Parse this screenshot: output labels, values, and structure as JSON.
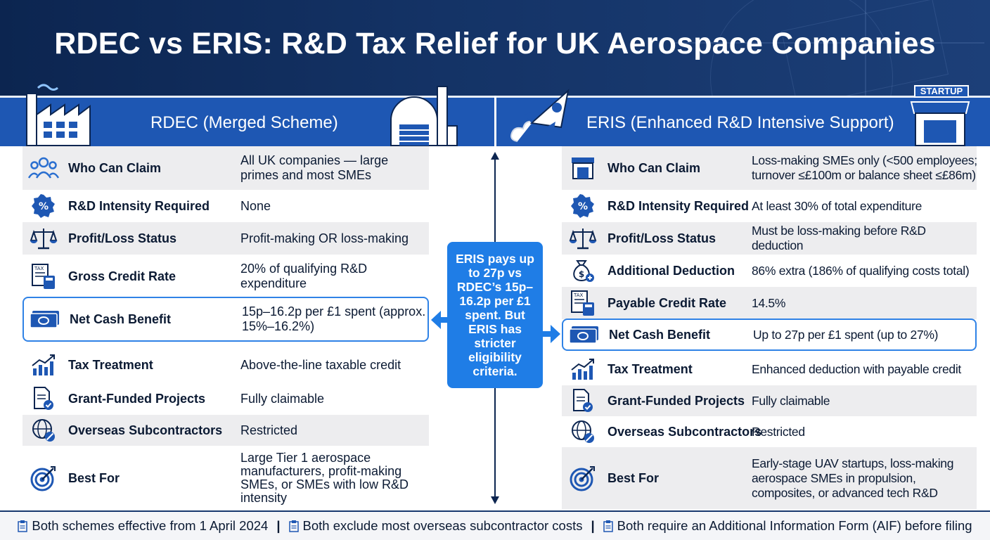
{
  "title": "RDEC vs ERIS: R&D Tax Relief for UK Aerospace Companies",
  "left": {
    "heading": "RDEC (Merged Scheme)",
    "rows": [
      {
        "label": "Who Can Claim",
        "value": "All UK companies — large primes and most SMEs",
        "icon": "people-icon"
      },
      {
        "label": "R&D Intensity Required",
        "value": "None",
        "icon": "percent-badge-icon"
      },
      {
        "label": "Profit/Loss Status",
        "value": "Profit-making OR loss-making",
        "icon": "scales-icon"
      },
      {
        "label": "Gross Credit Rate",
        "value": "20% of qualifying R&D expenditure",
        "icon": "tax-calculator-icon"
      },
      {
        "label": "Net Cash Benefit",
        "value": "15p–16.2p per £1 spent (approx. 15%–16.2%)",
        "icon": "cash-icon"
      },
      {
        "label": "Tax Treatment",
        "value": "Above-the-line taxable credit",
        "icon": "growth-chart-icon"
      },
      {
        "label": "Grant-Funded Projects",
        "value": "Fully claimable",
        "icon": "document-check-icon"
      },
      {
        "label": "Overseas Subcontractors",
        "value": "Restricted",
        "icon": "globe-restricted-icon"
      },
      {
        "label": "Best For",
        "value": "Large Tier 1 aerospace manufacturers, profit-making SMEs, or SMEs with low R&D intensity",
        "icon": "target-icon"
      }
    ]
  },
  "right": {
    "heading": "ERIS (Enhanced R&D Intensive Support)",
    "badge": "STARTUP",
    "rows": [
      {
        "label": "Who Can Claim",
        "value": "Loss-making SMEs only (<500 employees; turnover ≤£100m or balance sheet ≤£86m)",
        "icon": "storefront-icon"
      },
      {
        "label": "R&D Intensity Required",
        "value": "At least 30% of total expenditure",
        "icon": "percent-badge-icon"
      },
      {
        "label": "Profit/Loss Status",
        "value": "Must be loss-making before R&D deduction",
        "icon": "scales-icon"
      },
      {
        "label": "Additional Deduction",
        "value": "86% extra (186% of qualifying costs total)",
        "icon": "money-bag-icon"
      },
      {
        "label": "Payable Credit Rate",
        "value": "14.5%",
        "icon": "tax-calculator-icon"
      },
      {
        "label": "Net Cash Benefit",
        "value": "Up to 27p per £1 spent (up to 27%)",
        "icon": "cash-icon"
      },
      {
        "label": "Tax Treatment",
        "value": "Enhanced deduction with payable credit",
        "icon": "growth-chart-icon"
      },
      {
        "label": "Grant-Funded Projects",
        "value": "Fully claimable",
        "icon": "document-check-icon"
      },
      {
        "label": "Overseas Subcontractors",
        "value": "Restricted",
        "icon": "globe-restricted-icon"
      },
      {
        "label": "Best For",
        "value": "Early-stage UAV startups, loss-making aerospace SMEs in propulsion, composites, or advanced tech R&D",
        "icon": "target-icon"
      }
    ]
  },
  "callout": "ERIS pays up to 27p vs RDEC’s 15p–16.2p per £1 spent. But ERIS has stricter eligibility criteria.",
  "footer": [
    "Both schemes effective from 1 April 2024",
    "Both exclude most overseas subcontractor costs",
    "Both require an Additional Information Form (AIF) before filing"
  ],
  "colors": {
    "navy": "#0c2550",
    "bar_blue": "#1e57b3",
    "accent": "#1f7de6",
    "row_shade": "#ededef"
  }
}
